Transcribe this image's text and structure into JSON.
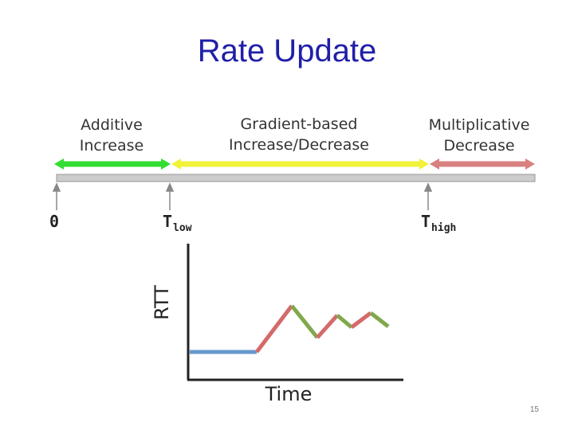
{
  "title": "Rate Update",
  "regions": {
    "additive": {
      "line1": "Additive",
      "line2": "Increase"
    },
    "gradient": {
      "line1": "Gradient-based",
      "line2": "Increase/Decrease"
    },
    "multiplicative": {
      "line1": "Multiplicative",
      "line2": "Decrease"
    }
  },
  "thresholds": {
    "zero": "0",
    "t_low": {
      "base": "T",
      "sub": "low"
    },
    "t_high": {
      "base": "T",
      "sub": "high"
    }
  },
  "plot": {
    "ylabel": "RTT",
    "xlabel": "Time"
  },
  "colors": {
    "title": "#1f1fa8",
    "additive": "#33dd33",
    "gradient": "#f2f23a",
    "multiplicative": "#d98080",
    "rtt_low": "#6699cc",
    "rtt_rising": "#d46a6a",
    "rtt_falling": "#80a84c"
  },
  "slide_number": "15"
}
